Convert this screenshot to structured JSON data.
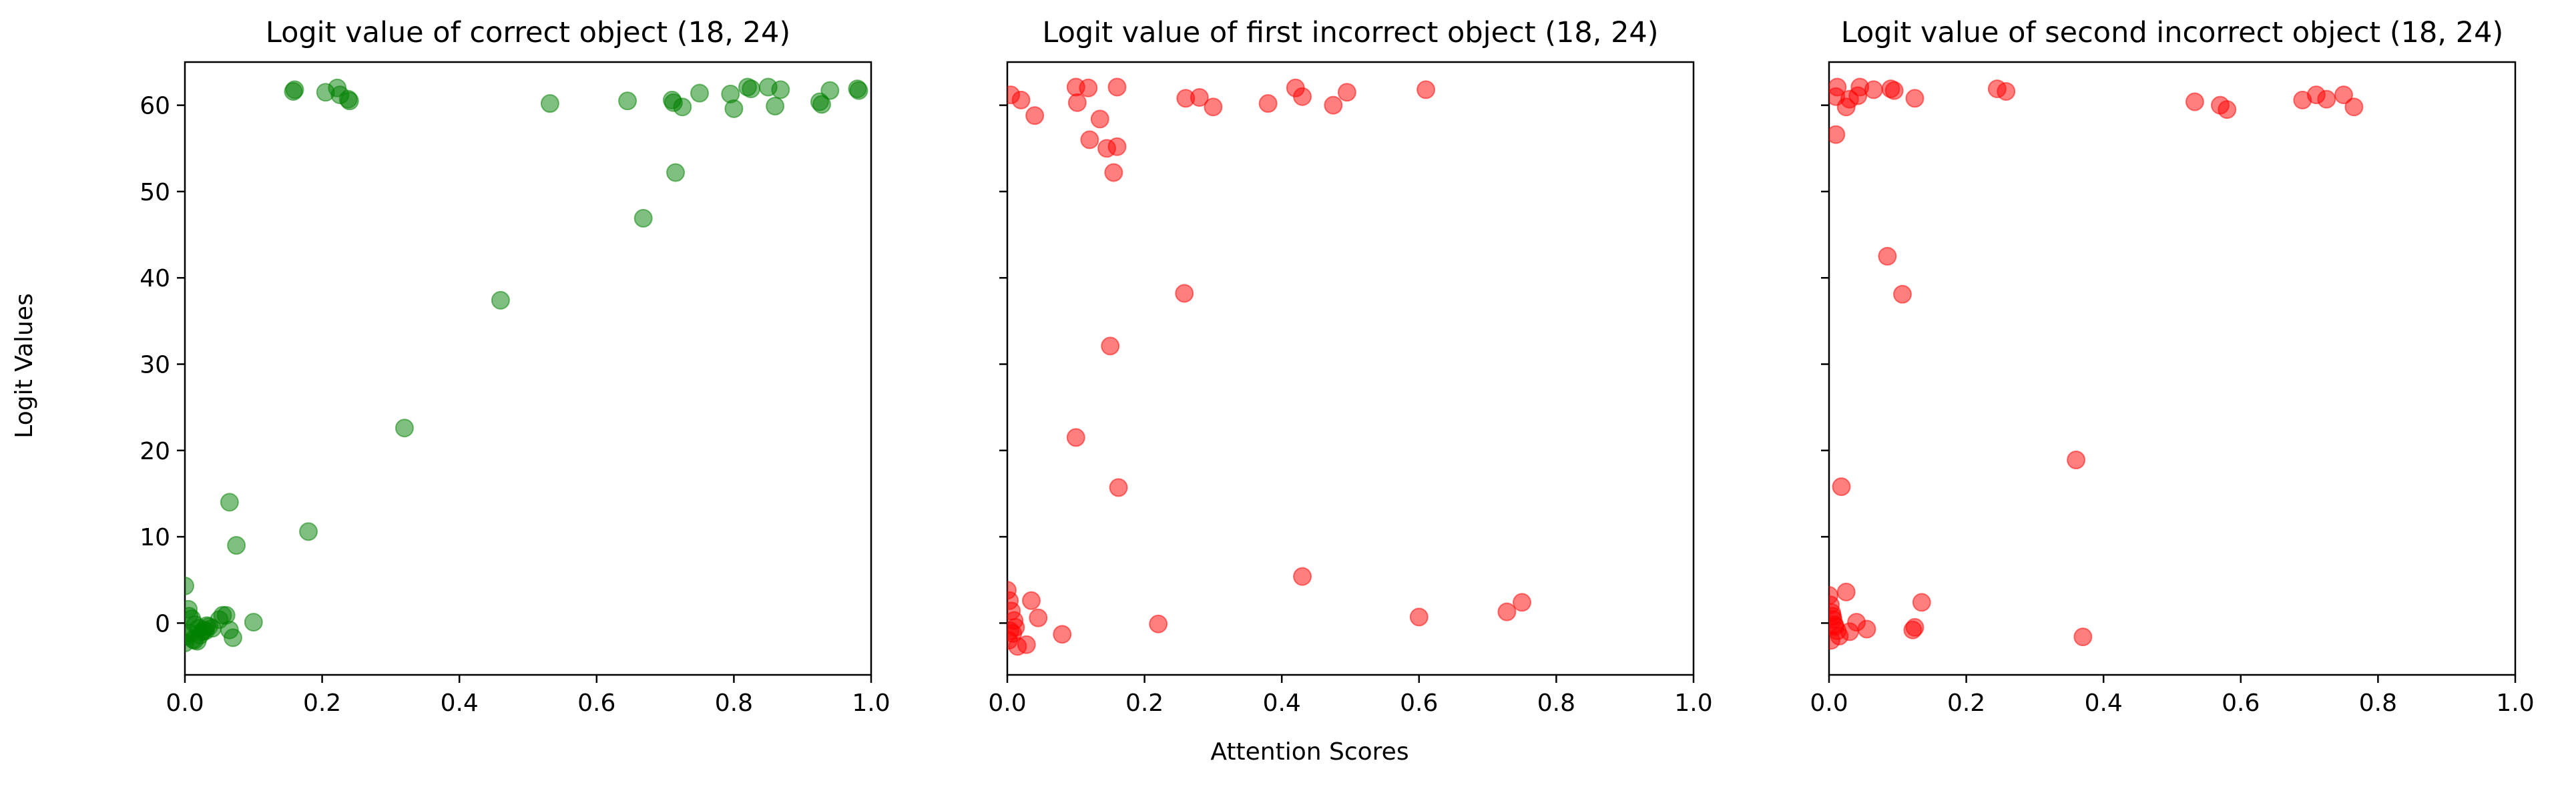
{
  "figure": {
    "shared_ylabel": "Logit Values",
    "shared_xlabel": "Attention Scores"
  },
  "chart_data": [
    {
      "type": "scatter",
      "title": "Logit value of correct object (18, 24)",
      "color": "#008000",
      "xlim": [
        0.0,
        1.0
      ],
      "ylim": [
        -6,
        65
      ],
      "xticks": [
        "0.0",
        "0.2",
        "0.4",
        "0.6",
        "0.8",
        "1.0"
      ],
      "yticks": [
        "0",
        "10",
        "20",
        "30",
        "40",
        "50",
        "60"
      ],
      "x": [
        0.16,
        0.158,
        0.205,
        0.222,
        0.226,
        0.238,
        0.24,
        0.532,
        0.645,
        0.71,
        0.712,
        0.725,
        0.75,
        0.795,
        0.8,
        0.82,
        0.825,
        0.85,
        0.86,
        0.868,
        0.925,
        0.928,
        0.94,
        0.98,
        0.982,
        0.715,
        0.668,
        0.46,
        0.32,
        0.18,
        0.065,
        0.075,
        0.0,
        0.005,
        0.01,
        0.015,
        0.02,
        0.025,
        0.03,
        0.035,
        0.04,
        0.05,
        0.055,
        0.06,
        0.065,
        0.07,
        0.1,
        0.0,
        0.002,
        0.008,
        0.012,
        0.018,
        0.022,
        0.028,
        0.032,
        0.006,
        0.014
      ],
      "y": [
        61.8,
        61.6,
        61.5,
        62.0,
        61.2,
        60.7,
        60.5,
        60.2,
        60.5,
        60.6,
        60.3,
        59.8,
        61.4,
        61.3,
        59.6,
        62.1,
        61.9,
        62.1,
        59.9,
        61.8,
        60.4,
        60.1,
        61.7,
        61.9,
        61.7,
        52.2,
        46.9,
        37.4,
        22.6,
        10.6,
        14.0,
        9.0,
        4.3,
        1.6,
        0.5,
        -0.2,
        -0.6,
        -1.0,
        -0.9,
        -0.4,
        -0.6,
        0.4,
        0.9,
        0.9,
        -0.8,
        -1.7,
        0.1,
        -2.3,
        -1.5,
        -1.2,
        -1.9,
        -2.1,
        -1.4,
        -0.8,
        -0.3,
        0.8,
        -2.0
      ]
    },
    {
      "type": "scatter",
      "title": "Logit value of first incorrect object (18, 24)",
      "color": "#ff0000",
      "xlim": [
        0.0,
        1.0
      ],
      "ylim": [
        -6,
        65
      ],
      "xticks": [
        "0.0",
        "0.2",
        "0.4",
        "0.6",
        "0.8",
        "1.0"
      ],
      "yticks": [],
      "x": [
        0.005,
        0.02,
        0.04,
        0.1,
        0.102,
        0.118,
        0.16,
        0.26,
        0.28,
        0.3,
        0.38,
        0.42,
        0.43,
        0.475,
        0.495,
        0.61,
        0.135,
        0.12,
        0.145,
        0.16,
        0.155,
        0.258,
        0.15,
        0.1,
        0.162,
        0.43,
        0.6,
        0.728,
        0.75,
        0.22,
        0.08,
        0.045,
        0.035,
        0.028,
        0.0,
        0.003,
        0.006,
        0.01,
        0.012,
        0.008,
        0.002,
        0.015,
        0.004
      ],
      "y": [
        61.2,
        60.6,
        58.8,
        62.1,
        60.3,
        62.0,
        62.1,
        60.8,
        60.9,
        59.8,
        60.2,
        62.0,
        61.0,
        60.0,
        61.5,
        61.8,
        58.4,
        56.0,
        55.0,
        55.2,
        52.2,
        38.2,
        32.1,
        21.5,
        15.7,
        5.4,
        0.7,
        1.3,
        2.4,
        -0.1,
        -1.3,
        0.6,
        2.6,
        -2.5,
        3.8,
        2.6,
        1.4,
        0.3,
        -0.5,
        -1.2,
        -2.0,
        -2.7,
        -0.9
      ]
    },
    {
      "type": "scatter",
      "title": "Logit value of second incorrect object (18, 24)",
      "color": "#ff0000",
      "xlim": [
        0.0,
        1.0
      ],
      "ylim": [
        -6,
        65
      ],
      "xticks": [
        "0.0",
        "0.2",
        "0.4",
        "0.6",
        "0.8",
        "1.0"
      ],
      "yticks": [],
      "x": [
        0.01,
        0.012,
        0.025,
        0.03,
        0.042,
        0.045,
        0.065,
        0.09,
        0.095,
        0.125,
        0.245,
        0.258,
        0.533,
        0.57,
        0.58,
        0.69,
        0.71,
        0.725,
        0.75,
        0.765,
        0.01,
        0.085,
        0.107,
        0.36,
        0.018,
        0.135,
        0.125,
        0.122,
        0.37,
        0.055,
        0.04,
        0.03,
        0.025,
        0.0,
        0.002,
        0.004,
        0.006,
        0.008,
        0.012,
        0.015,
        0.003,
        0.005,
        0.009
      ],
      "y": [
        61.0,
        62.1,
        59.8,
        60.7,
        61.1,
        62.1,
        61.8,
        61.9,
        61.7,
        60.8,
        61.9,
        61.6,
        60.4,
        60.0,
        59.5,
        60.6,
        61.2,
        60.7,
        61.2,
        59.8,
        56.6,
        42.5,
        38.1,
        18.9,
        15.8,
        2.4,
        -0.5,
        -0.8,
        -1.6,
        -0.7,
        0.1,
        -1.0,
        3.6,
        3.2,
        2.1,
        1.2,
        0.4,
        -0.2,
        -0.9,
        -1.5,
        -2.0,
        0.8,
        -0.4
      ]
    }
  ]
}
